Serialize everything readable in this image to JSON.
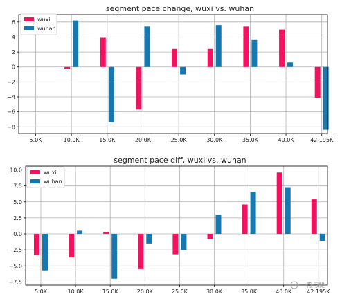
{
  "colors": {
    "wuxi": "#F0135F",
    "wuhan": "#1778B0"
  },
  "watermark": {
    "text": "一背与腿"
  },
  "chart_data": [
    {
      "type": "bar",
      "title": "segment pace change, wuxi vs. wuhan",
      "xlabel": "",
      "ylabel": "",
      "categories": [
        "5.0K",
        "10.0K",
        "15.0K",
        "20.0K",
        "25.0K",
        "30.0K",
        "35.0K",
        "40.0K",
        "42.195K"
      ],
      "yticks": [
        "6",
        "4",
        "2",
        "0",
        "−2",
        "−4",
        "−6",
        "−8"
      ],
      "ylim": [
        -8.9,
        7.0
      ],
      "grid": true,
      "legend_position": "top-left",
      "series": [
        {
          "name": "wuxi",
          "values": [
            null,
            -0.3,
            3.9,
            -5.7,
            2.4,
            2.4,
            5.4,
            5.0,
            -4.1
          ]
        },
        {
          "name": "wuhan",
          "values": [
            null,
            6.2,
            -7.4,
            5.4,
            -1.0,
            5.6,
            3.6,
            0.6,
            -8.4
          ]
        }
      ]
    },
    {
      "type": "bar",
      "title": "segment pace diff, wuxi vs. wuhan",
      "xlabel": "",
      "ylabel": "",
      "categories": [
        "5.0K",
        "10.0K",
        "15.0K",
        "20.0K",
        "25.0K",
        "30.0K",
        "35.0K",
        "40.0K",
        "42.195K"
      ],
      "yticks": [
        "10.0",
        "7.5",
        "5.0",
        "2.5",
        "0.0",
        "−2.5",
        "−5.0",
        "−7.5"
      ],
      "ylim": [
        -8.0,
        10.6
      ],
      "grid": true,
      "legend_position": "top-left",
      "series": [
        {
          "name": "wuxi",
          "values": [
            -3.3,
            -3.7,
            0.3,
            -5.5,
            -3.2,
            -0.8,
            4.6,
            9.6,
            5.4
          ]
        },
        {
          "name": "wuhan",
          "values": [
            -5.7,
            0.5,
            -7.0,
            -1.5,
            -2.5,
            3.0,
            6.6,
            7.3,
            -1.1
          ]
        }
      ]
    }
  ]
}
